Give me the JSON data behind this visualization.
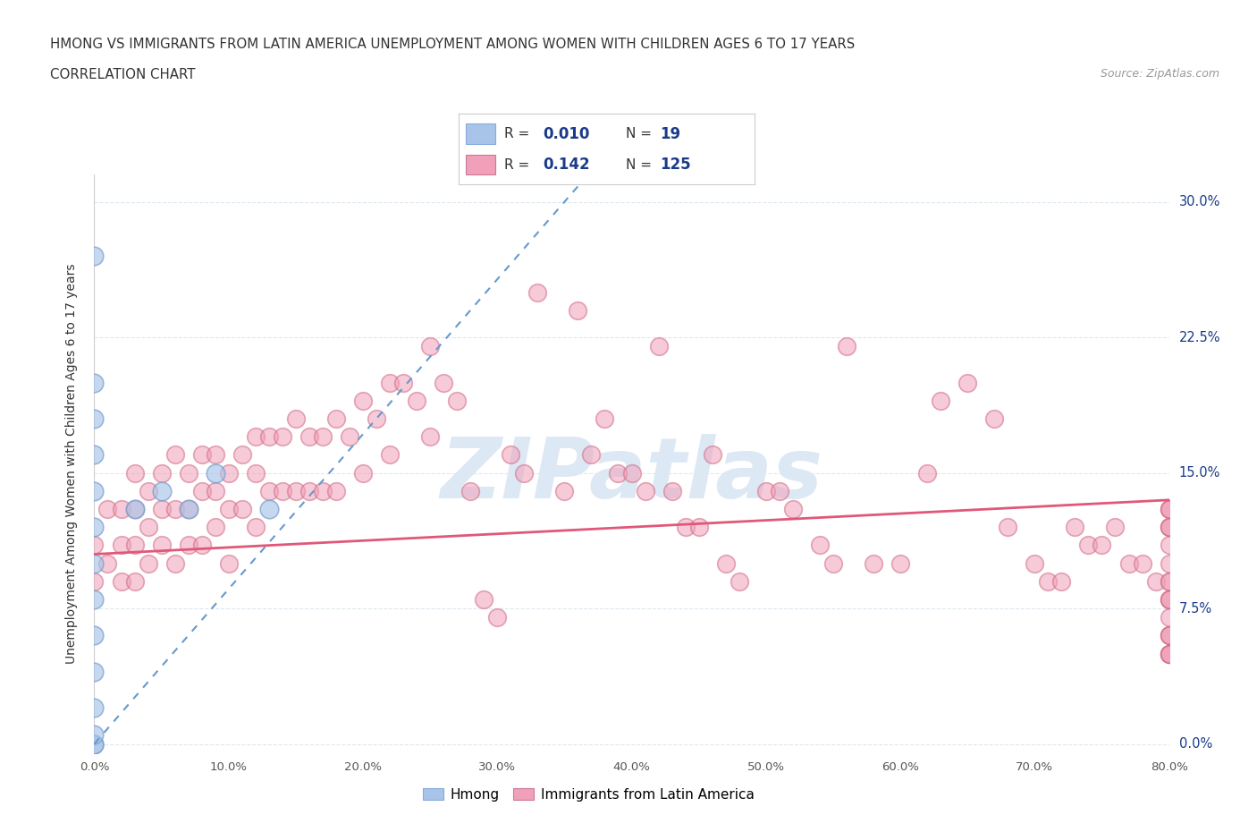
{
  "title_line1": "HMONG VS IMMIGRANTS FROM LATIN AMERICA UNEMPLOYMENT AMONG WOMEN WITH CHILDREN AGES 6 TO 17 YEARS",
  "title_line2": "CORRELATION CHART",
  "source_text": "Source: ZipAtlas.com",
  "ylabel": "Unemployment Among Women with Children Ages 6 to 17 years",
  "xlim": [
    0.0,
    0.8
  ],
  "ylim": [
    -0.005,
    0.315
  ],
  "xticks": [
    0.0,
    0.1,
    0.2,
    0.3,
    0.4,
    0.5,
    0.6,
    0.7,
    0.8
  ],
  "xticklabels": [
    "0.0%",
    "10.0%",
    "20.0%",
    "30.0%",
    "40.0%",
    "50.0%",
    "60.0%",
    "70.0%",
    "80.0%"
  ],
  "ytick_positions": [
    0.0,
    0.075,
    0.15,
    0.225,
    0.3
  ],
  "yticklabels_right": [
    "0.0%",
    "7.5%",
    "15.0%",
    "22.5%",
    "30.0%"
  ],
  "hmong_color": "#a8c4e8",
  "latin_color": "#f0a0b8",
  "hmong_line_color": "#6699cc",
  "latin_line_color": "#e05878",
  "hmong_R": 0.01,
  "hmong_N": 19,
  "latin_R": 0.142,
  "latin_N": 125,
  "background_color": "#ffffff",
  "grid_color": "#dde8f0",
  "legend_text_color": "#1a3a8a",
  "title_color": "#333333",
  "axis_label_color": "#333333",
  "tick_label_color": "#555555",
  "watermark_text": "ZIPatlas",
  "watermark_color": "#dde8f5",
  "hmong_x": [
    0.0,
    0.0,
    0.0,
    0.0,
    0.0,
    0.0,
    0.0,
    0.0,
    0.0,
    0.0,
    0.0,
    0.0,
    0.0,
    0.0,
    0.03,
    0.05,
    0.07,
    0.09,
    0.13
  ],
  "hmong_y": [
    0.0,
    0.0,
    0.005,
    0.02,
    0.04,
    0.06,
    0.08,
    0.1,
    0.12,
    0.14,
    0.16,
    0.18,
    0.2,
    0.27,
    0.13,
    0.14,
    0.13,
    0.15,
    0.13
  ],
  "latin_x": [
    0.0,
    0.0,
    0.01,
    0.01,
    0.02,
    0.02,
    0.02,
    0.03,
    0.03,
    0.03,
    0.03,
    0.04,
    0.04,
    0.04,
    0.05,
    0.05,
    0.05,
    0.06,
    0.06,
    0.06,
    0.07,
    0.07,
    0.07,
    0.08,
    0.08,
    0.08,
    0.09,
    0.09,
    0.09,
    0.1,
    0.1,
    0.1,
    0.11,
    0.11,
    0.12,
    0.12,
    0.12,
    0.13,
    0.13,
    0.14,
    0.14,
    0.15,
    0.15,
    0.16,
    0.16,
    0.17,
    0.17,
    0.18,
    0.18,
    0.19,
    0.2,
    0.2,
    0.21,
    0.22,
    0.22,
    0.23,
    0.24,
    0.25,
    0.25,
    0.26,
    0.27,
    0.28,
    0.29,
    0.3,
    0.31,
    0.32,
    0.33,
    0.35,
    0.36,
    0.37,
    0.38,
    0.39,
    0.4,
    0.41,
    0.42,
    0.43,
    0.44,
    0.45,
    0.46,
    0.47,
    0.48,
    0.5,
    0.51,
    0.52,
    0.54,
    0.55,
    0.56,
    0.58,
    0.6,
    0.62,
    0.63,
    0.65,
    0.67,
    0.68,
    0.7,
    0.71,
    0.72,
    0.73,
    0.74,
    0.75,
    0.76,
    0.77,
    0.78,
    0.79,
    0.8,
    0.8,
    0.8,
    0.8,
    0.8,
    0.8,
    0.8,
    0.8,
    0.8,
    0.8,
    0.8,
    0.8,
    0.8,
    0.8,
    0.8,
    0.8,
    0.8,
    0.8,
    0.8,
    0.8,
    0.8
  ],
  "latin_y": [
    0.11,
    0.09,
    0.13,
    0.1,
    0.13,
    0.11,
    0.09,
    0.15,
    0.13,
    0.11,
    0.09,
    0.14,
    0.12,
    0.1,
    0.15,
    0.13,
    0.11,
    0.16,
    0.13,
    0.1,
    0.15,
    0.13,
    0.11,
    0.16,
    0.14,
    0.11,
    0.16,
    0.14,
    0.12,
    0.15,
    0.13,
    0.1,
    0.16,
    0.13,
    0.17,
    0.15,
    0.12,
    0.17,
    0.14,
    0.17,
    0.14,
    0.18,
    0.14,
    0.17,
    0.14,
    0.17,
    0.14,
    0.18,
    0.14,
    0.17,
    0.19,
    0.15,
    0.18,
    0.2,
    0.16,
    0.2,
    0.19,
    0.22,
    0.17,
    0.2,
    0.19,
    0.14,
    0.08,
    0.07,
    0.16,
    0.15,
    0.25,
    0.14,
    0.24,
    0.16,
    0.18,
    0.15,
    0.15,
    0.14,
    0.22,
    0.14,
    0.12,
    0.12,
    0.16,
    0.1,
    0.09,
    0.14,
    0.14,
    0.13,
    0.11,
    0.1,
    0.22,
    0.1,
    0.1,
    0.15,
    0.19,
    0.2,
    0.18,
    0.12,
    0.1,
    0.09,
    0.09,
    0.12,
    0.11,
    0.11,
    0.12,
    0.1,
    0.1,
    0.09,
    0.13,
    0.13,
    0.12,
    0.11,
    0.09,
    0.08,
    0.13,
    0.12,
    0.1,
    0.09,
    0.07,
    0.06,
    0.12,
    0.08,
    0.08,
    0.05,
    0.05,
    0.06,
    0.06,
    0.05,
    0.05
  ]
}
